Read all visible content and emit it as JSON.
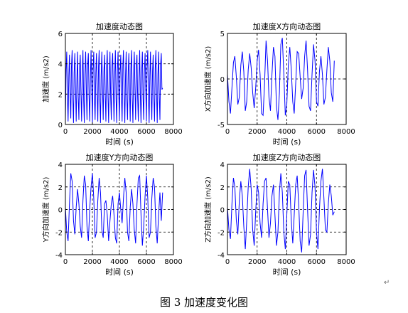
{
  "caption": "图 3  加速度变化图",
  "paragraph_mark": "↵",
  "chart_data": [
    {
      "type": "line",
      "title": "加速度动态图",
      "xlabel": "时间 (s)",
      "ylabel": "加速度 (m/s2)",
      "xlim": [
        0,
        8000
      ],
      "ylim": [
        0,
        6
      ],
      "xticks": [
        0,
        2000,
        4000,
        6000,
        8000
      ],
      "yticks": [
        0,
        2,
        4,
        6
      ],
      "grid": true,
      "series": [
        {
          "color": "#0000ff",
          "x": [
            0,
            50,
            100,
            150,
            200,
            250,
            300,
            350,
            400,
            450,
            500,
            550,
            600,
            650,
            700,
            750,
            800,
            850,
            900,
            950,
            1000,
            1050,
            1100,
            1150,
            1200,
            1250,
            1300,
            1350,
            1400,
            1450,
            1500,
            1550,
            1600,
            1650,
            1700,
            1750,
            1800,
            1850,
            1900,
            1950,
            2000,
            2050,
            2100,
            2150,
            2200,
            2250,
            2300,
            2350,
            2400,
            2450,
            2500,
            2550,
            2600,
            2650,
            2700,
            2750,
            2800,
            2850,
            2900,
            2950,
            3000,
            3050,
            3100,
            3150,
            3200,
            3250,
            3300,
            3350,
            3400,
            3450,
            3500,
            3550,
            3600,
            3650,
            3700,
            3750,
            3800,
            3850,
            3900,
            3950,
            4000,
            4050,
            4100,
            4150,
            4200,
            4250,
            4300,
            4350,
            4400,
            4450,
            4500,
            4550,
            4600,
            4650,
            4700,
            4750,
            4800,
            4850,
            4900,
            4950,
            5000,
            5050,
            5100,
            5150,
            5200,
            5250,
            5300,
            5350,
            5400,
            5450,
            5500,
            5550,
            5600,
            5650,
            5700,
            5750,
            5800,
            5850,
            5900,
            5950,
            6000,
            6050,
            6100,
            6150,
            6200,
            6250,
            6300,
            6350,
            6400,
            6450,
            6500,
            6550,
            6600,
            6650,
            6700,
            6750,
            6800,
            6850,
            6900,
            6950,
            7000,
            7050,
            7100,
            7150,
            7200
          ],
          "y": [
            0.3,
            3.6,
            4.8,
            2.0,
            0.2,
            3.2,
            4.6,
            1.8,
            0.4,
            3.8,
            4.9,
            1.7,
            0.1,
            3.4,
            4.7,
            2.3,
            0.2,
            3.0,
            4.8,
            1.9,
            0.3,
            3.7,
            4.6,
            2.2,
            0.2,
            3.5,
            4.9,
            1.6,
            0.1,
            3.3,
            4.8,
            2.1,
            0.3,
            3.9,
            4.7,
            1.8,
            0.2,
            3.1,
            4.9,
            2.4,
            0.1,
            3.6,
            4.8,
            1.9,
            0.3,
            3.4,
            4.7,
            2.0,
            0.2,
            3.8,
            4.9,
            1.7,
            0.1,
            3.2,
            4.8,
            2.2,
            0.3,
            3.5,
            4.6,
            1.9,
            0.2,
            3.7,
            4.9,
            2.1,
            0.1,
            3.3,
            4.8,
            1.8,
            0.3,
            3.9,
            4.7,
            2.3,
            0.2,
            3.1,
            4.9,
            1.7,
            0.1,
            3.6,
            4.8,
            2.0,
            0.3,
            3.4,
            4.6,
            1.9,
            0.2,
            3.8,
            4.9,
            2.2,
            0.1,
            3.2,
            4.8,
            1.8,
            0.3,
            3.5,
            4.7,
            2.1,
            0.2,
            3.7,
            4.9,
            1.6,
            0.1,
            3.3,
            4.8,
            2.3,
            0.3,
            3.9,
            4.6,
            1.9,
            0.2,
            3.1,
            4.9,
            2.0,
            0.1,
            3.6,
            4.8,
            1.7,
            0.3,
            3.4,
            4.7,
            2.2,
            0.2,
            3.8,
            4.9,
            1.8,
            0.1,
            3.2,
            4.8,
            2.1,
            0.3,
            3.5,
            4.6,
            1.9,
            0.2,
            3.7,
            4.9,
            2.0,
            0.1,
            3.3,
            4.8,
            1.8,
            0.3,
            3.9,
            4.7,
            2.3,
            2.4
          ]
        }
      ]
    },
    {
      "type": "line",
      "title": "加速度X方向动态图",
      "xlabel": "时间 (s)",
      "ylabel": "X方向加速度 (m/s2)",
      "xlim": [
        0,
        8000
      ],
      "ylim": [
        -5,
        5
      ],
      "xticks": [
        0,
        2000,
        4000,
        6000,
        8000
      ],
      "yticks": [
        -5,
        0,
        5
      ],
      "grid": true,
      "series": [
        {
          "color": "#0000ff",
          "x": [
            0,
            100,
            200,
            300,
            400,
            500,
            600,
            700,
            800,
            900,
            1000,
            1100,
            1200,
            1300,
            1400,
            1500,
            1600,
            1700,
            1800,
            1900,
            2000,
            2100,
            2200,
            2300,
            2400,
            2500,
            2600,
            2700,
            2800,
            2900,
            3000,
            3100,
            3200,
            3300,
            3400,
            3500,
            3600,
            3700,
            3800,
            3900,
            4000,
            4100,
            4200,
            4300,
            4400,
            4500,
            4600,
            4700,
            4800,
            4900,
            5000,
            5100,
            5200,
            5300,
            5400,
            5500,
            5600,
            5700,
            5800,
            5900,
            6000,
            6100,
            6200,
            6300,
            6400,
            6500,
            6600,
            6700,
            6800,
            6900,
            7000,
            7100,
            7200
          ],
          "y": [
            0.5,
            -2.5,
            -3.8,
            -1.0,
            1.8,
            2.5,
            0.2,
            -2.8,
            -2.0,
            1.5,
            3.0,
            0.8,
            -3.5,
            -2.5,
            1.0,
            2.8,
            1.2,
            -1.5,
            -3.2,
            -1.0,
            2.0,
            3.2,
            0.5,
            -3.8,
            -4.0,
            -0.5,
            4.2,
            2.0,
            -2.0,
            -3.5,
            0.5,
            3.5,
            2.5,
            -3.0,
            -4.5,
            -1.5,
            3.8,
            4.5,
            0.5,
            -4.0,
            -2.8,
            1.5,
            3.5,
            1.0,
            -2.5,
            -3.8,
            -0.5,
            3.0,
            2.8,
            0.2,
            -2.2,
            -1.0,
            2.5,
            4.2,
            1.0,
            -3.0,
            -3.5,
            0.5,
            3.8,
            2.0,
            -2.5,
            -3.0,
            0.8,
            2.5,
            0.5,
            -2.8,
            -2.0,
            1.0,
            3.5,
            2.0,
            -1.5,
            -2.5,
            2.0
          ]
        }
      ]
    },
    {
      "type": "line",
      "title": "加速度Y方向动态图",
      "xlabel": "时间 (s)",
      "ylabel": "Y方向加速度 (m/s2)",
      "xlim": [
        0,
        8000
      ],
      "ylim": [
        -4,
        4
      ],
      "xticks": [
        0,
        2000,
        4000,
        6000,
        8000
      ],
      "yticks": [
        -4,
        -2,
        0,
        2,
        4
      ],
      "grid": true,
      "series": [
        {
          "color": "#0000ff",
          "x": [
            0,
            100,
            200,
            300,
            400,
            500,
            600,
            700,
            800,
            900,
            1000,
            1100,
            1200,
            1300,
            1400,
            1500,
            1600,
            1700,
            1800,
            1900,
            2000,
            2100,
            2200,
            2300,
            2400,
            2500,
            2600,
            2700,
            2800,
            2900,
            3000,
            3100,
            3200,
            3300,
            3400,
            3500,
            3600,
            3700,
            3800,
            3900,
            4000,
            4100,
            4200,
            4300,
            4400,
            4500,
            4600,
            4700,
            4800,
            4900,
            5000,
            5100,
            5200,
            5300,
            5400,
            5500,
            5600,
            5700,
            5800,
            5900,
            6000,
            6100,
            6200,
            6300,
            6400,
            6500,
            6600,
            6700,
            6800,
            6900,
            7000,
            7100,
            7200
          ],
          "y": [
            0.2,
            -2.0,
            -2.8,
            0.5,
            3.2,
            2.5,
            -1.0,
            -2.2,
            0.2,
            1.8,
            0.5,
            -1.5,
            -2.5,
            0.8,
            3.0,
            2.2,
            -1.5,
            -2.8,
            0.0,
            2.0,
            3.2,
            1.0,
            -2.5,
            -2.0,
            0.8,
            2.8,
            1.5,
            -1.8,
            -2.5,
            0.5,
            0.8,
            -0.5,
            -2.8,
            -1.0,
            0.5,
            1.2,
            -0.5,
            -2.5,
            -3.0,
            0.5,
            1.5,
            0.0,
            -1.2,
            1.0,
            2.8,
            1.5,
            -2.0,
            -2.8,
            0.2,
            1.8,
            0.5,
            -1.8,
            -3.0,
            0.5,
            2.8,
            3.0,
            -0.5,
            -3.2,
            -1.5,
            1.2,
            3.0,
            1.0,
            -2.5,
            -2.0,
            1.0,
            2.8,
            2.0,
            -1.5,
            -3.0,
            -0.5,
            1.5,
            -1.0,
            1.5
          ]
        }
      ]
    },
    {
      "type": "line",
      "title": "加速度Z方向动态图",
      "xlabel": "时间 (s)",
      "ylabel": "Z方向加速度 (m/s2)",
      "xlim": [
        0,
        8000
      ],
      "ylim": [
        -4,
        4
      ],
      "xticks": [
        0,
        2000,
        4000,
        6000,
        8000
      ],
      "yticks": [
        -4,
        -2,
        0,
        2,
        4
      ],
      "grid": true,
      "series": [
        {
          "color": "#0000ff",
          "x": [
            0,
            100,
            200,
            300,
            400,
            500,
            600,
            700,
            800,
            900,
            1000,
            1100,
            1200,
            1300,
            1400,
            1500,
            1600,
            1700,
            1800,
            1900,
            2000,
            2100,
            2200,
            2300,
            2400,
            2500,
            2600,
            2700,
            2800,
            2900,
            3000,
            3100,
            3200,
            3300,
            3400,
            3500,
            3600,
            3700,
            3800,
            3900,
            4000,
            4100,
            4200,
            4300,
            4400,
            4500,
            4600,
            4700,
            4800,
            4900,
            5000,
            5100,
            5200,
            5300,
            5400,
            5500,
            5600,
            5700,
            5800,
            5900,
            6000,
            6100,
            6200,
            6300,
            6400,
            6500,
            6600,
            6700,
            6800,
            6900,
            7000,
            7100,
            7200
          ],
          "y": [
            0.2,
            -1.8,
            -2.6,
            0.5,
            2.8,
            2.0,
            -1.0,
            -2.2,
            0.8,
            2.5,
            1.2,
            -1.5,
            -3.5,
            -1.0,
            2.0,
            3.6,
            1.8,
            -1.8,
            -3.2,
            -0.2,
            2.2,
            1.5,
            -1.2,
            -2.5,
            0.5,
            2.5,
            2.8,
            0.0,
            -2.5,
            -1.2,
            1.2,
            2.2,
            -0.5,
            -3.2,
            -2.0,
            1.5,
            3.2,
            1.5,
            -2.0,
            -3.5,
            -0.5,
            2.5,
            2.2,
            -1.0,
            -3.0,
            -0.5,
            2.2,
            3.0,
            0.5,
            -2.8,
            -3.8,
            -0.2,
            3.0,
            3.5,
            0.0,
            -3.2,
            -2.2,
            1.5,
            3.5,
            2.0,
            -2.0,
            -3.5,
            0.0,
            2.5,
            3.6,
            1.0,
            -1.8,
            -2.0,
            0.5,
            2.2,
            1.2,
            -0.5,
            -0.2
          ]
        }
      ]
    }
  ]
}
